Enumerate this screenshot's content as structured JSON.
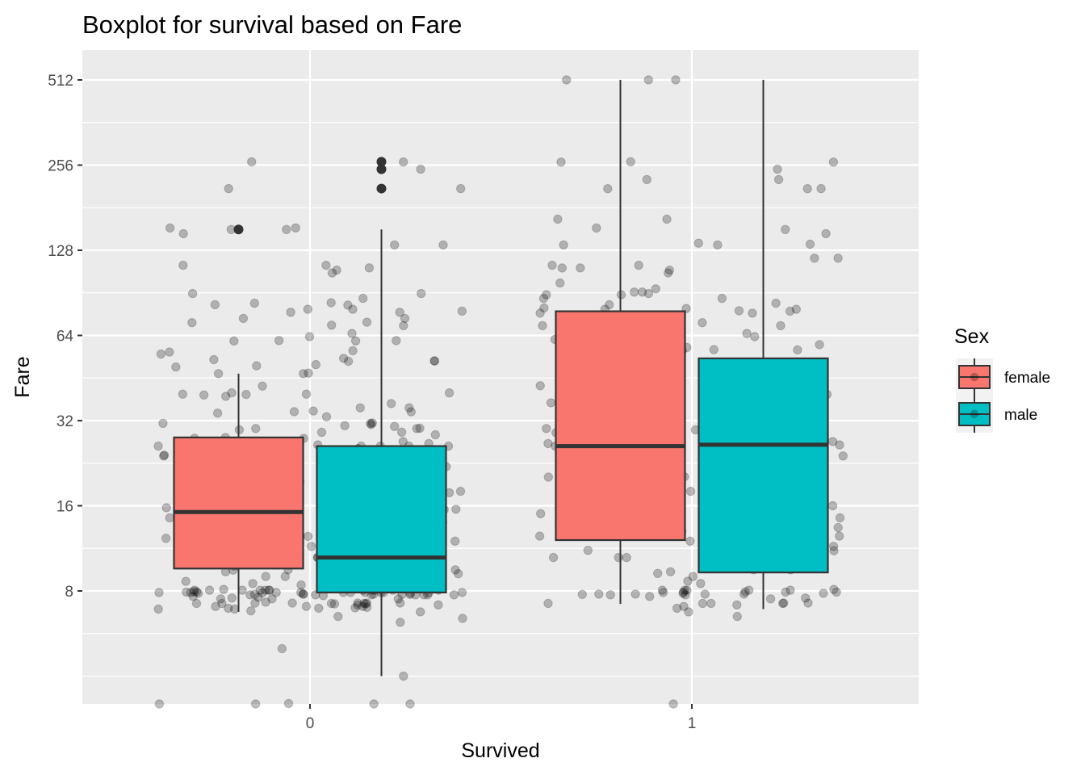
{
  "chart_data": {
    "type": "boxplot",
    "title": "Boxplot for survival based on Fare",
    "xlabel": "Survived",
    "ylabel": "Fare",
    "y_scale": "log2",
    "y_ticks": [
      8,
      16,
      32,
      64,
      128,
      256,
      512
    ],
    "ylim": [
      3.1,
      640
    ],
    "categories": [
      "0",
      "1"
    ],
    "legend": {
      "title": "Sex",
      "placement": "right",
      "entries": [
        {
          "label": "female",
          "color": "#F8766D"
        },
        {
          "label": "male",
          "color": "#00BFC4"
        }
      ]
    },
    "grid": true,
    "series": [
      {
        "name": "female",
        "color": "#F8766D",
        "boxes": [
          {
            "category": "0",
            "whisker_low": 6.75,
            "q1": 9.6,
            "median": 15.2,
            "q3": 27.9,
            "whisker_high": 46.9,
            "outliers": [
              151.55
            ]
          },
          {
            "category": "1",
            "whisker_low": 7.2,
            "q1": 12.1,
            "median": 26.0,
            "q3": 77.9,
            "whisker_high": 512.3,
            "outliers": []
          }
        ]
      },
      {
        "name": "male",
        "color": "#00BFC4",
        "boxes": [
          {
            "category": "0",
            "whisker_low": 4.0,
            "q1": 7.9,
            "median": 10.5,
            "q3": 26.0,
            "whisker_high": 151.55,
            "outliers": [
              211.5,
              247.5,
              263.0
            ]
          },
          {
            "category": "1",
            "whisker_low": 6.9,
            "q1": 9.3,
            "median": 26.3,
            "q3": 53.1,
            "whisker_high": 512.3,
            "outliers": []
          }
        ]
      }
    ],
    "jitter_points": {
      "color": "#000000",
      "opacity": 0.25,
      "groups": [
        {
          "category": "0",
          "values": [
            7.25,
            7.75,
            7.9,
            7.9,
            7.9,
            8.05,
            8.05,
            7.75,
            7.8,
            7.85,
            7.9,
            8.05,
            7.25,
            7.05,
            7.2,
            6.95,
            7.5,
            7.5,
            7.75,
            7.75,
            7.9,
            7.9,
            7.9,
            8.05,
            8.05,
            8.05,
            8.05,
            8.66,
            9.0,
            9.5,
            9.8,
            10.5,
            10.5,
            10.5,
            10.5,
            11.5,
            12.0,
            12.5,
            13.0,
            13.0,
            13.0,
            13.0,
            13.0,
            13.5,
            14.5,
            14.5,
            15.0,
            15.5,
            15.75,
            16.1,
            16.7,
            18.0,
            19.5,
            20.2,
            20.5,
            21.0,
            21.1,
            22.0,
            23.0,
            24.0,
            24.15,
            25.5,
            26.0,
            26.0,
            26.0,
            26.0,
            26.25,
            26.55,
            27.0,
            27.7,
            29.1,
            30.0,
            30.7,
            31.0,
            31.3,
            33.0,
            34.4,
            34.6,
            35.5,
            39.6,
            39.7,
            40.1,
            46.9,
            50.5,
            52.0,
            53.1,
            55.0,
            56.5,
            61.2,
            61.4,
            69.3,
            71.3,
            73.5,
            77.3,
            78.0,
            79.2,
            82.2,
            83.5,
            86.5,
            90.0,
            106.4,
            110.9,
            113.3,
            133.7,
            146.5,
            151.5,
            153.5,
            262.4,
            263.0,
            247.5,
            211.5,
            4.0,
            5.0,
            3.2,
            3.1,
            3.1,
            3.1,
            3.1,
            6.2,
            6.4,
            6.5,
            6.75,
            6.8,
            6.9,
            6.9,
            6.95,
            6.975,
            7.0,
            7.05,
            7.05,
            7.125,
            7.14,
            7.2,
            7.225,
            7.225,
            7.225,
            7.23,
            7.25,
            7.25,
            7.25,
            7.3,
            7.5,
            7.55,
            7.6,
            7.65,
            7.7,
            7.75,
            7.75,
            7.75,
            7.775,
            7.775,
            7.775,
            7.8,
            7.8,
            7.85,
            7.875,
            7.875,
            7.895,
            7.9,
            7.9,
            7.925,
            7.95,
            7.95,
            8.05,
            8.05,
            8.05,
            8.05,
            8.05,
            8.1,
            8.4,
            8.45,
            8.5,
            8.65,
            8.7,
            9.0,
            9.2,
            9.35,
            9.475,
            9.5,
            9.5,
            9.8,
            9.825,
            10.17,
            10.46,
            10.5,
            10.5,
            10.5,
            10.5,
            10.5,
            11.13,
            11.24,
            11.5,
            12.0,
            12.275,
            12.35,
            12.475,
            12.5,
            12.875,
            13.0,
            13.0,
            13.0,
            13.0,
            13.0,
            13.0,
            13.5,
            13.86,
            14.0,
            14.1,
            14.4,
            14.45,
            14.5,
            14.5,
            14.5,
            15.05,
            15.1,
            15.5,
            15.55,
            15.75,
            15.85,
            16.0,
            16.1,
            16.7,
            17.4,
            17.8,
            18.0,
            18.0,
            18.75,
            19.5,
            20.2,
            20.25,
            20.525,
            20.575,
            21.0,
            21.075,
            21.6,
            21.68,
            23.25,
            23.45,
            24.15,
            25.47,
            25.925,
            26.0,
            26.0,
            26.0,
            26.25,
            26.55,
            26.55,
            27.72,
            27.9,
            28.5,
            29.125,
            29.7,
            30.0,
            30.07,
            30.5,
            31.275,
            31.39,
            34.02,
            34.375,
            35.5,
            36.75,
            39.0,
            39.4,
            39.69,
            40.125,
            42.4,
            46.9,
            47.1,
            49.5,
            50.0,
            51.86,
            52.0,
            52.55,
            55.9,
            61.175,
            61.38,
            63.36,
            65.0,
            69.55,
            71.0,
            73.5,
            77.29,
            79.2,
            81.86,
            83.16,
            90.0,
            108.9,
            113.275,
            133.65,
            151.55,
            153.46,
            211.5
          ]
        },
        {
          "category": "1",
          "values": [
            7.225,
            7.25,
            7.75,
            7.8,
            7.8,
            7.85,
            7.9,
            7.925,
            7.925,
            7.95,
            8.05,
            8.05,
            8.5,
            9.0,
            9.5,
            9.6,
            10.5,
            10.5,
            10.5,
            11.13,
            11.5,
            12.0,
            12.5,
            12.5,
            12.5,
            12.5,
            13.0,
            13.0,
            13.4,
            13.5,
            13.8,
            14.45,
            14.5,
            15.25,
            15.5,
            15.5,
            15.75,
            16.1,
            16.7,
            18.0,
            18.75,
            19.25,
            20.2,
            21.0,
            22.35,
            23.0,
            24.0,
            25.0,
            26.0,
            26.0,
            26.0,
            26.0,
            26.0,
            26.25,
            26.25,
            26.25,
            26.55,
            27.0,
            27.75,
            29.0,
            30.0,
            30.5,
            31.0,
            31.4,
            32.5,
            33.0,
            33.5,
            35.5,
            39.0,
            39.4,
            41.6,
            45.0,
            49.5,
            50.5,
            51.5,
            52.0,
            53.1,
            55.0,
            56.9,
            57.0,
            57.98,
            59.4,
            61.98,
            63.36,
            65.0,
            66.6,
            69.3,
            71.28,
            75.25,
            76.7,
            77.95,
            78.26,
            79.2,
            79.65,
            82.17,
            83.16,
            86.5,
            89.1,
            91.08,
            93.5,
            106.42,
            108.9,
            110.88,
            113.28,
            120.0,
            133.65,
            135.63,
            146.52,
            151.55,
            153.46,
            164.87,
            211.34,
            211.5,
            227.53,
            227.53,
            262.38,
            263.0,
            512.33,
            512.33,
            6.5,
            6.75,
            6.95,
            7.05,
            7.14,
            7.225,
            7.225,
            7.23,
            7.25,
            7.5,
            7.55,
            7.65,
            7.75,
            7.775,
            7.79,
            7.8,
            7.85,
            7.925,
            8.05,
            8.05,
            8.05,
            8.1,
            8.66,
            9.225,
            9.35,
            9.5,
            10.5,
            10.5,
            11.1,
            11.5,
            12.475,
            12.875,
            13.0,
            13.0,
            13.0,
            13.0,
            13.0,
            13.42,
            14.1,
            14.4,
            14.45,
            14.5,
            15.0,
            15.05,
            15.1,
            15.7,
            15.85,
            16.0,
            16.1,
            17.0,
            18.75,
            19.2,
            19.5,
            20.0,
            20.25,
            20.525,
            21.0,
            22.0,
            23.0,
            24.15,
            25.9,
            26.0,
            26.0,
            26.0,
            26.29,
            26.55,
            26.55,
            27.0,
            29.7,
            30.0,
            30.5,
            32.0,
            33.5,
            35.5,
            37.0,
            39.6,
            40.125,
            42.5,
            45.5,
            52.0,
            53.1,
            55.4,
            56.5,
            57.0,
            69.3,
            71.0,
            76.73,
            79.2,
            80.0,
            86.5,
            89.1,
            90.0,
            91.08,
            98.0,
            110.88,
            113.275,
            120.0,
            133.65,
            134.5,
            164.87,
            211.34,
            262.38,
            247.52,
            512.33,
            3.1
          ]
        }
      ]
    }
  }
}
